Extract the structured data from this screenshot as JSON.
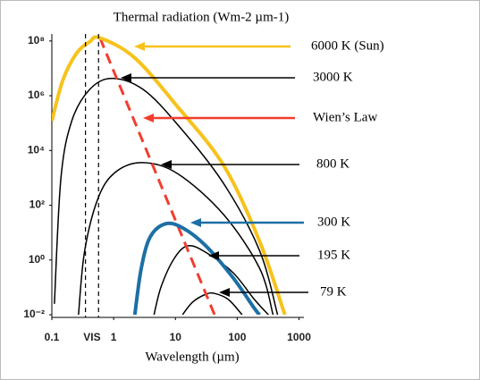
{
  "chart_data": {
    "type": "line",
    "title": "Thermal radiation (Wm-2 µm-1)",
    "x_label": "Wavelength (µm)",
    "log_x": true,
    "log_y": true,
    "xlim": [
      0.1,
      1200
    ],
    "ylim": [
      0.008,
      180000000
    ],
    "xticks": [
      0.1,
      1,
      10,
      100,
      1000
    ],
    "yticks": [
      {
        "value": 0.01,
        "label": "10⁻²"
      },
      {
        "value": 1,
        "label": "10⁰"
      },
      {
        "value": 100,
        "label": "10²"
      },
      {
        "value": 10000,
        "label": "10⁴"
      },
      {
        "value": 1000000,
        "label": "10⁶"
      },
      {
        "value": 100000000,
        "label": "10⁸"
      }
    ],
    "visible": {
      "label": "VIS",
      "range": [
        0.35,
        0.57
      ]
    },
    "series": [
      {
        "name": "6000 K (Sun)",
        "color": "#f7c21b",
        "line_width": 4,
        "dashed": false,
        "x": [
          0.1,
          0.15,
          0.25,
          0.41,
          0.6,
          2.2,
          11,
          60,
          230,
          590
        ],
        "values": [
          120000,
          3600000,
          35000000,
          93000000,
          130000000,
          24000000,
          380000,
          2900,
          4.8,
          0.01
        ]
      },
      {
        "name": "3000 K",
        "color": "#000000",
        "line_width": 1.5,
        "dashed": false,
        "x": [
          0.11,
          0.14,
          0.21,
          0.41,
          0.94,
          3.0,
          11,
          60,
          230,
          450
        ],
        "values": [
          0.025,
          930,
          120000,
          1700000,
          4300000,
          1700000,
          85000,
          630,
          2.2,
          0.01
        ]
      },
      {
        "name": "Wien’s Law",
        "color": "#f23d2e",
        "line_width": 3,
        "dashed": true,
        "x": [
          0.6,
          43
        ],
        "values": [
          130000000,
          0.01
        ]
      },
      {
        "name": "800 K",
        "color": "#000000",
        "line_width": 1.5,
        "dashed": false,
        "x": [
          0.27,
          0.34,
          0.57,
          1.1,
          3.0,
          11,
          60,
          230,
          380
        ],
        "values": [
          0.01,
          2.2,
          200,
          1700,
          3600,
          1400,
          46,
          0.5,
          0.01
        ]
      },
      {
        "name": "300 K",
        "color": "#1d6fa5",
        "line_width": 4,
        "dashed": false,
        "x": [
          2.2,
          2.8,
          3.9,
          6.9,
          13,
          31,
          85,
          190,
          230
        ],
        "values": [
          0.01,
          0.5,
          6.9,
          21,
          15,
          3.3,
          0.23,
          0.017,
          0.01
        ]
      },
      {
        "name": "195 K",
        "color": "#000000",
        "line_width": 1.5,
        "dashed": false,
        "x": [
          4.5,
          5.9,
          9.7,
          16,
          31,
          85,
          190,
          320
        ],
        "values": [
          0.01,
          0.11,
          1.2,
          3.3,
          1.9,
          0.35,
          0.036,
          0.01
        ]
      },
      {
        "name": "79 K",
        "color": "#000000",
        "line_width": 1.5,
        "dashed": false,
        "x": [
          13,
          19,
          31,
          43,
          72,
          120
        ],
        "values": [
          0.01,
          0.029,
          0.056,
          0.06,
          0.036,
          0.01
        ]
      }
    ]
  }
}
